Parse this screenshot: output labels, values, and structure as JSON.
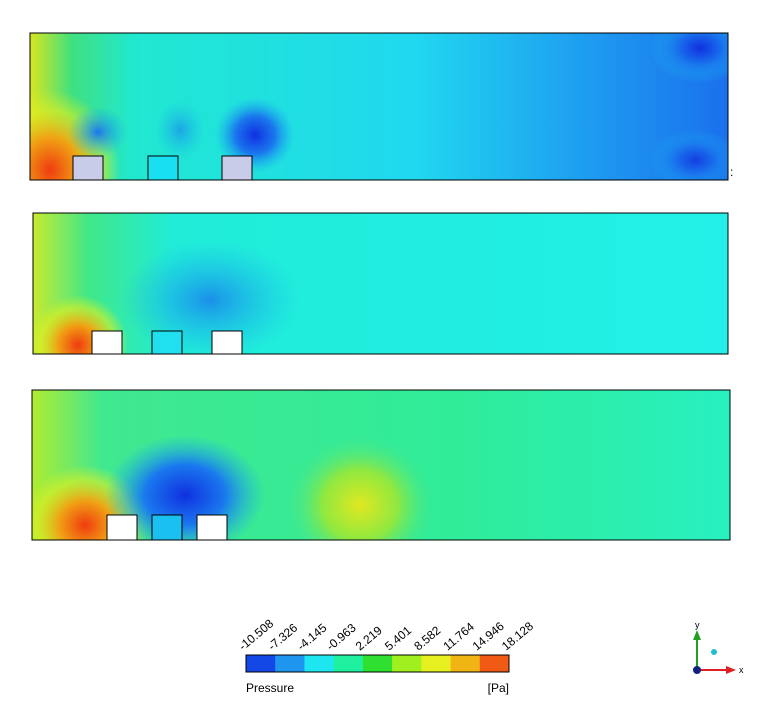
{
  "legend": {
    "title": "Pressure",
    "unit": "[Pa]",
    "labels": [
      "-10.508",
      "-7.326",
      "-4.145",
      "-0.963",
      "2.219",
      "5.401",
      "8.582",
      "11.764",
      "14.946",
      "18.128"
    ],
    "colors": [
      "#1448e6",
      "#1e96f0",
      "#1ee6f0",
      "#1ef0a0",
      "#30e030",
      "#a0f020",
      "#e6f020",
      "#f0b414",
      "#f05a14"
    ]
  },
  "triad": {
    "y_label": "y",
    "x_label": "x"
  },
  "stray_mark": ":"
}
